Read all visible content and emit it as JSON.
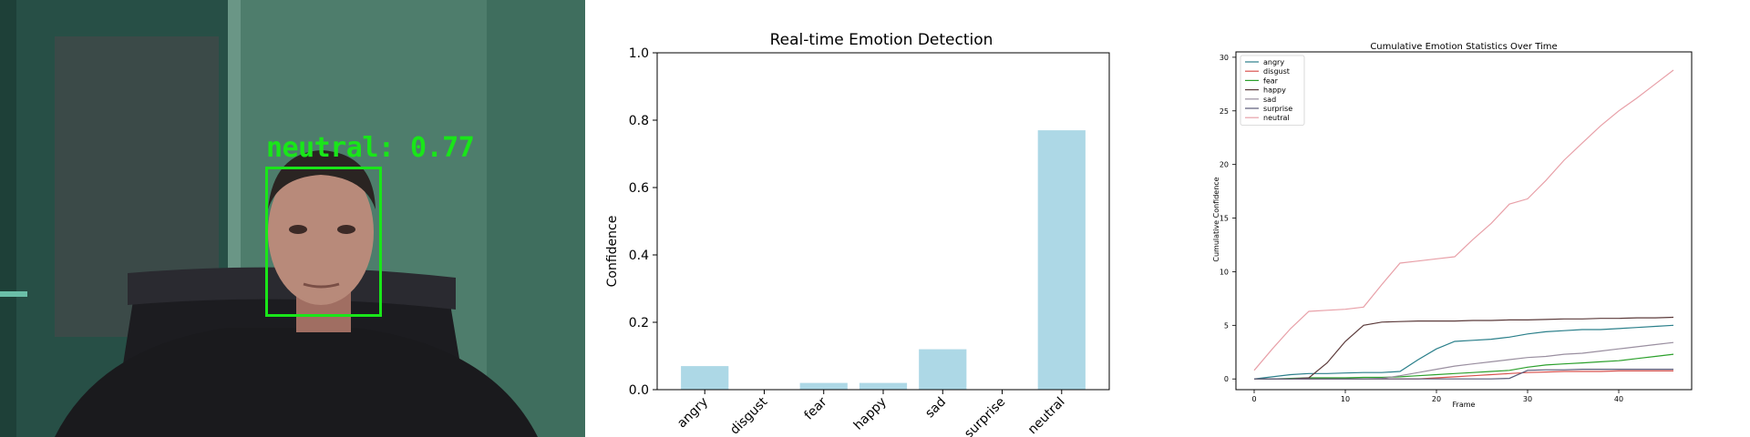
{
  "detection": {
    "label": "neutral: 0.77",
    "emotion": "neutral",
    "confidence": 0.77
  },
  "chart_data": [
    {
      "type": "bar",
      "title": "Real-time Emotion Detection",
      "xlabel": "",
      "ylabel": "Confidence",
      "categories": [
        "angry",
        "disgust",
        "fear",
        "happy",
        "sad",
        "surprise",
        "neutral"
      ],
      "values": [
        0.07,
        0.0,
        0.02,
        0.02,
        0.12,
        0.0,
        0.77
      ],
      "ylim": [
        0,
        1.0
      ],
      "yticks": [
        "0.0",
        "0.2",
        "0.4",
        "0.6",
        "0.8",
        "1.0"
      ],
      "bar_color": "#add8e6",
      "grid": false
    },
    {
      "type": "line",
      "title": "Cumulative Emotion Statistics Over Time",
      "xlabel": "Frame",
      "ylabel": "Cumulative Confidence",
      "xlim": [
        -2,
        48
      ],
      "ylim": [
        -1,
        30.5
      ],
      "xticks": [
        "0",
        "10",
        "20",
        "30",
        "40"
      ],
      "yticks": [
        "0",
        "5",
        "10",
        "15",
        "20",
        "25",
        "30"
      ],
      "legend_position": "top-left",
      "grid": false,
      "x": [
        0,
        2,
        4,
        6,
        8,
        10,
        12,
        14,
        16,
        18,
        20,
        22,
        24,
        26,
        28,
        30,
        32,
        34,
        36,
        38,
        40,
        42,
        44,
        46
      ],
      "series": [
        {
          "name": "angry",
          "color": "#2a7f8a",
          "values": [
            0.0,
            0.2,
            0.4,
            0.5,
            0.5,
            0.55,
            0.6,
            0.6,
            0.7,
            1.8,
            2.8,
            3.5,
            3.6,
            3.7,
            3.9,
            4.2,
            4.4,
            4.5,
            4.6,
            4.6,
            4.7,
            4.8,
            4.9,
            5.0
          ]
        },
        {
          "name": "disgust",
          "color": "#d9534f",
          "values": [
            0.0,
            0.0,
            0.0,
            0.0,
            0.0,
            0.0,
            0.0,
            0.0,
            0.0,
            0.0,
            0.1,
            0.2,
            0.3,
            0.4,
            0.5,
            0.6,
            0.65,
            0.7,
            0.7,
            0.7,
            0.75,
            0.75,
            0.75,
            0.75
          ]
        },
        {
          "name": "fear",
          "color": "#2ca02c",
          "values": [
            0.0,
            0.0,
            0.05,
            0.1,
            0.1,
            0.1,
            0.15,
            0.15,
            0.2,
            0.3,
            0.4,
            0.5,
            0.6,
            0.7,
            0.8,
            1.1,
            1.3,
            1.4,
            1.5,
            1.6,
            1.7,
            1.9,
            2.1,
            2.3
          ]
        },
        {
          "name": "happy",
          "color": "#5b3a3a",
          "values": [
            0.0,
            0.0,
            0.0,
            0.1,
            1.5,
            3.5,
            5.0,
            5.3,
            5.35,
            5.4,
            5.4,
            5.4,
            5.45,
            5.45,
            5.5,
            5.5,
            5.55,
            5.6,
            5.6,
            5.65,
            5.65,
            5.7,
            5.7,
            5.75
          ]
        },
        {
          "name": "sad",
          "color": "#9a8fa0",
          "values": [
            0.0,
            0.0,
            0.0,
            0.0,
            0.0,
            0.0,
            0.0,
            0.05,
            0.3,
            0.6,
            0.9,
            1.2,
            1.4,
            1.6,
            1.8,
            2.0,
            2.1,
            2.3,
            2.4,
            2.6,
            2.8,
            3.0,
            3.2,
            3.4
          ]
        },
        {
          "name": "surprise",
          "color": "#5a5a78",
          "values": [
            0.0,
            0.0,
            0.0,
            0.0,
            0.0,
            0.0,
            0.0,
            0.0,
            0.0,
            0.0,
            0.0,
            0.0,
            0.0,
            0.0,
            0.05,
            0.8,
            0.85,
            0.85,
            0.9,
            0.9,
            0.9,
            0.9,
            0.9,
            0.9
          ]
        },
        {
          "name": "neutral",
          "color": "#e8a0a8",
          "values": [
            0.8,
            2.8,
            4.7,
            6.3,
            6.4,
            6.5,
            6.7,
            8.8,
            10.8,
            11.0,
            11.2,
            11.4,
            13.0,
            14.5,
            16.3,
            16.8,
            18.5,
            20.4,
            22.0,
            23.6,
            25.0,
            26.2,
            27.5,
            28.8
          ]
        }
      ]
    }
  ]
}
